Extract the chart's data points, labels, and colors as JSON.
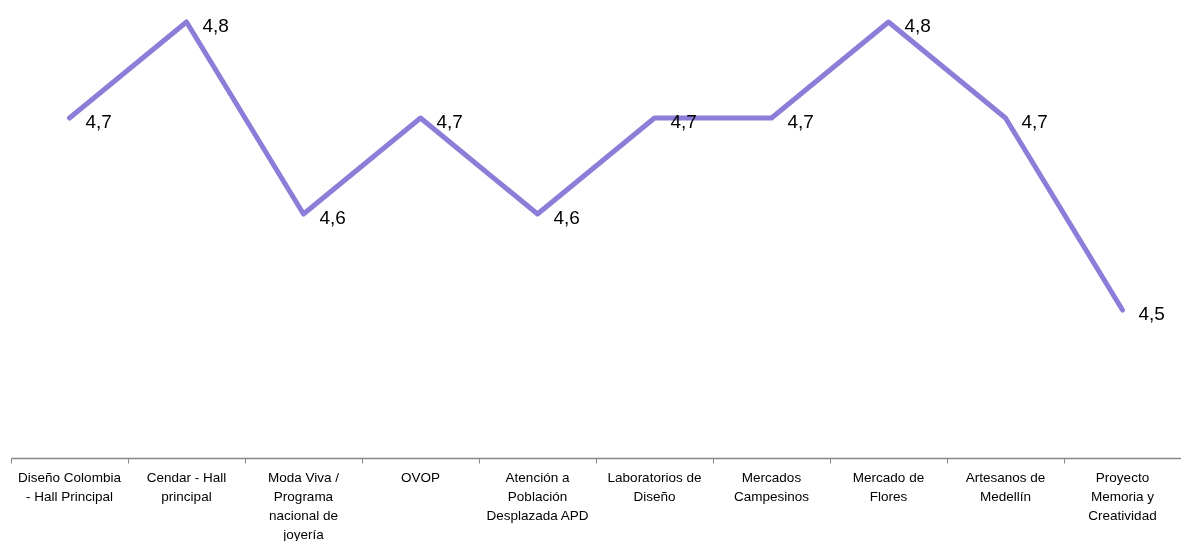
{
  "chart_data": {
    "type": "line",
    "categories": [
      "Diseño Colombia - Hall Principal",
      "Cendar - Hall principal",
      "Moda Viva / Programa nacional de joyería",
      "OVOP",
      "Atención a Población Desplazada APD",
      "Laboratorios de Diseño",
      "Mercados Campesinos",
      "Mercado de Flores",
      "Artesanos de Medellín",
      "Proyecto Memoria y Creatividad"
    ],
    "values": [
      4.7,
      4.8,
      4.6,
      4.7,
      4.6,
      4.7,
      4.7,
      4.8,
      4.7,
      4.5
    ],
    "value_labels": [
      "4,7",
      "4,8",
      "4,6",
      "4,7",
      "4,6",
      "4,7",
      "4,7",
      "4,8",
      "4,7",
      "4,5"
    ],
    "color": "#8b7dd8",
    "line_style": "solid",
    "tick_labels": "x"
  }
}
